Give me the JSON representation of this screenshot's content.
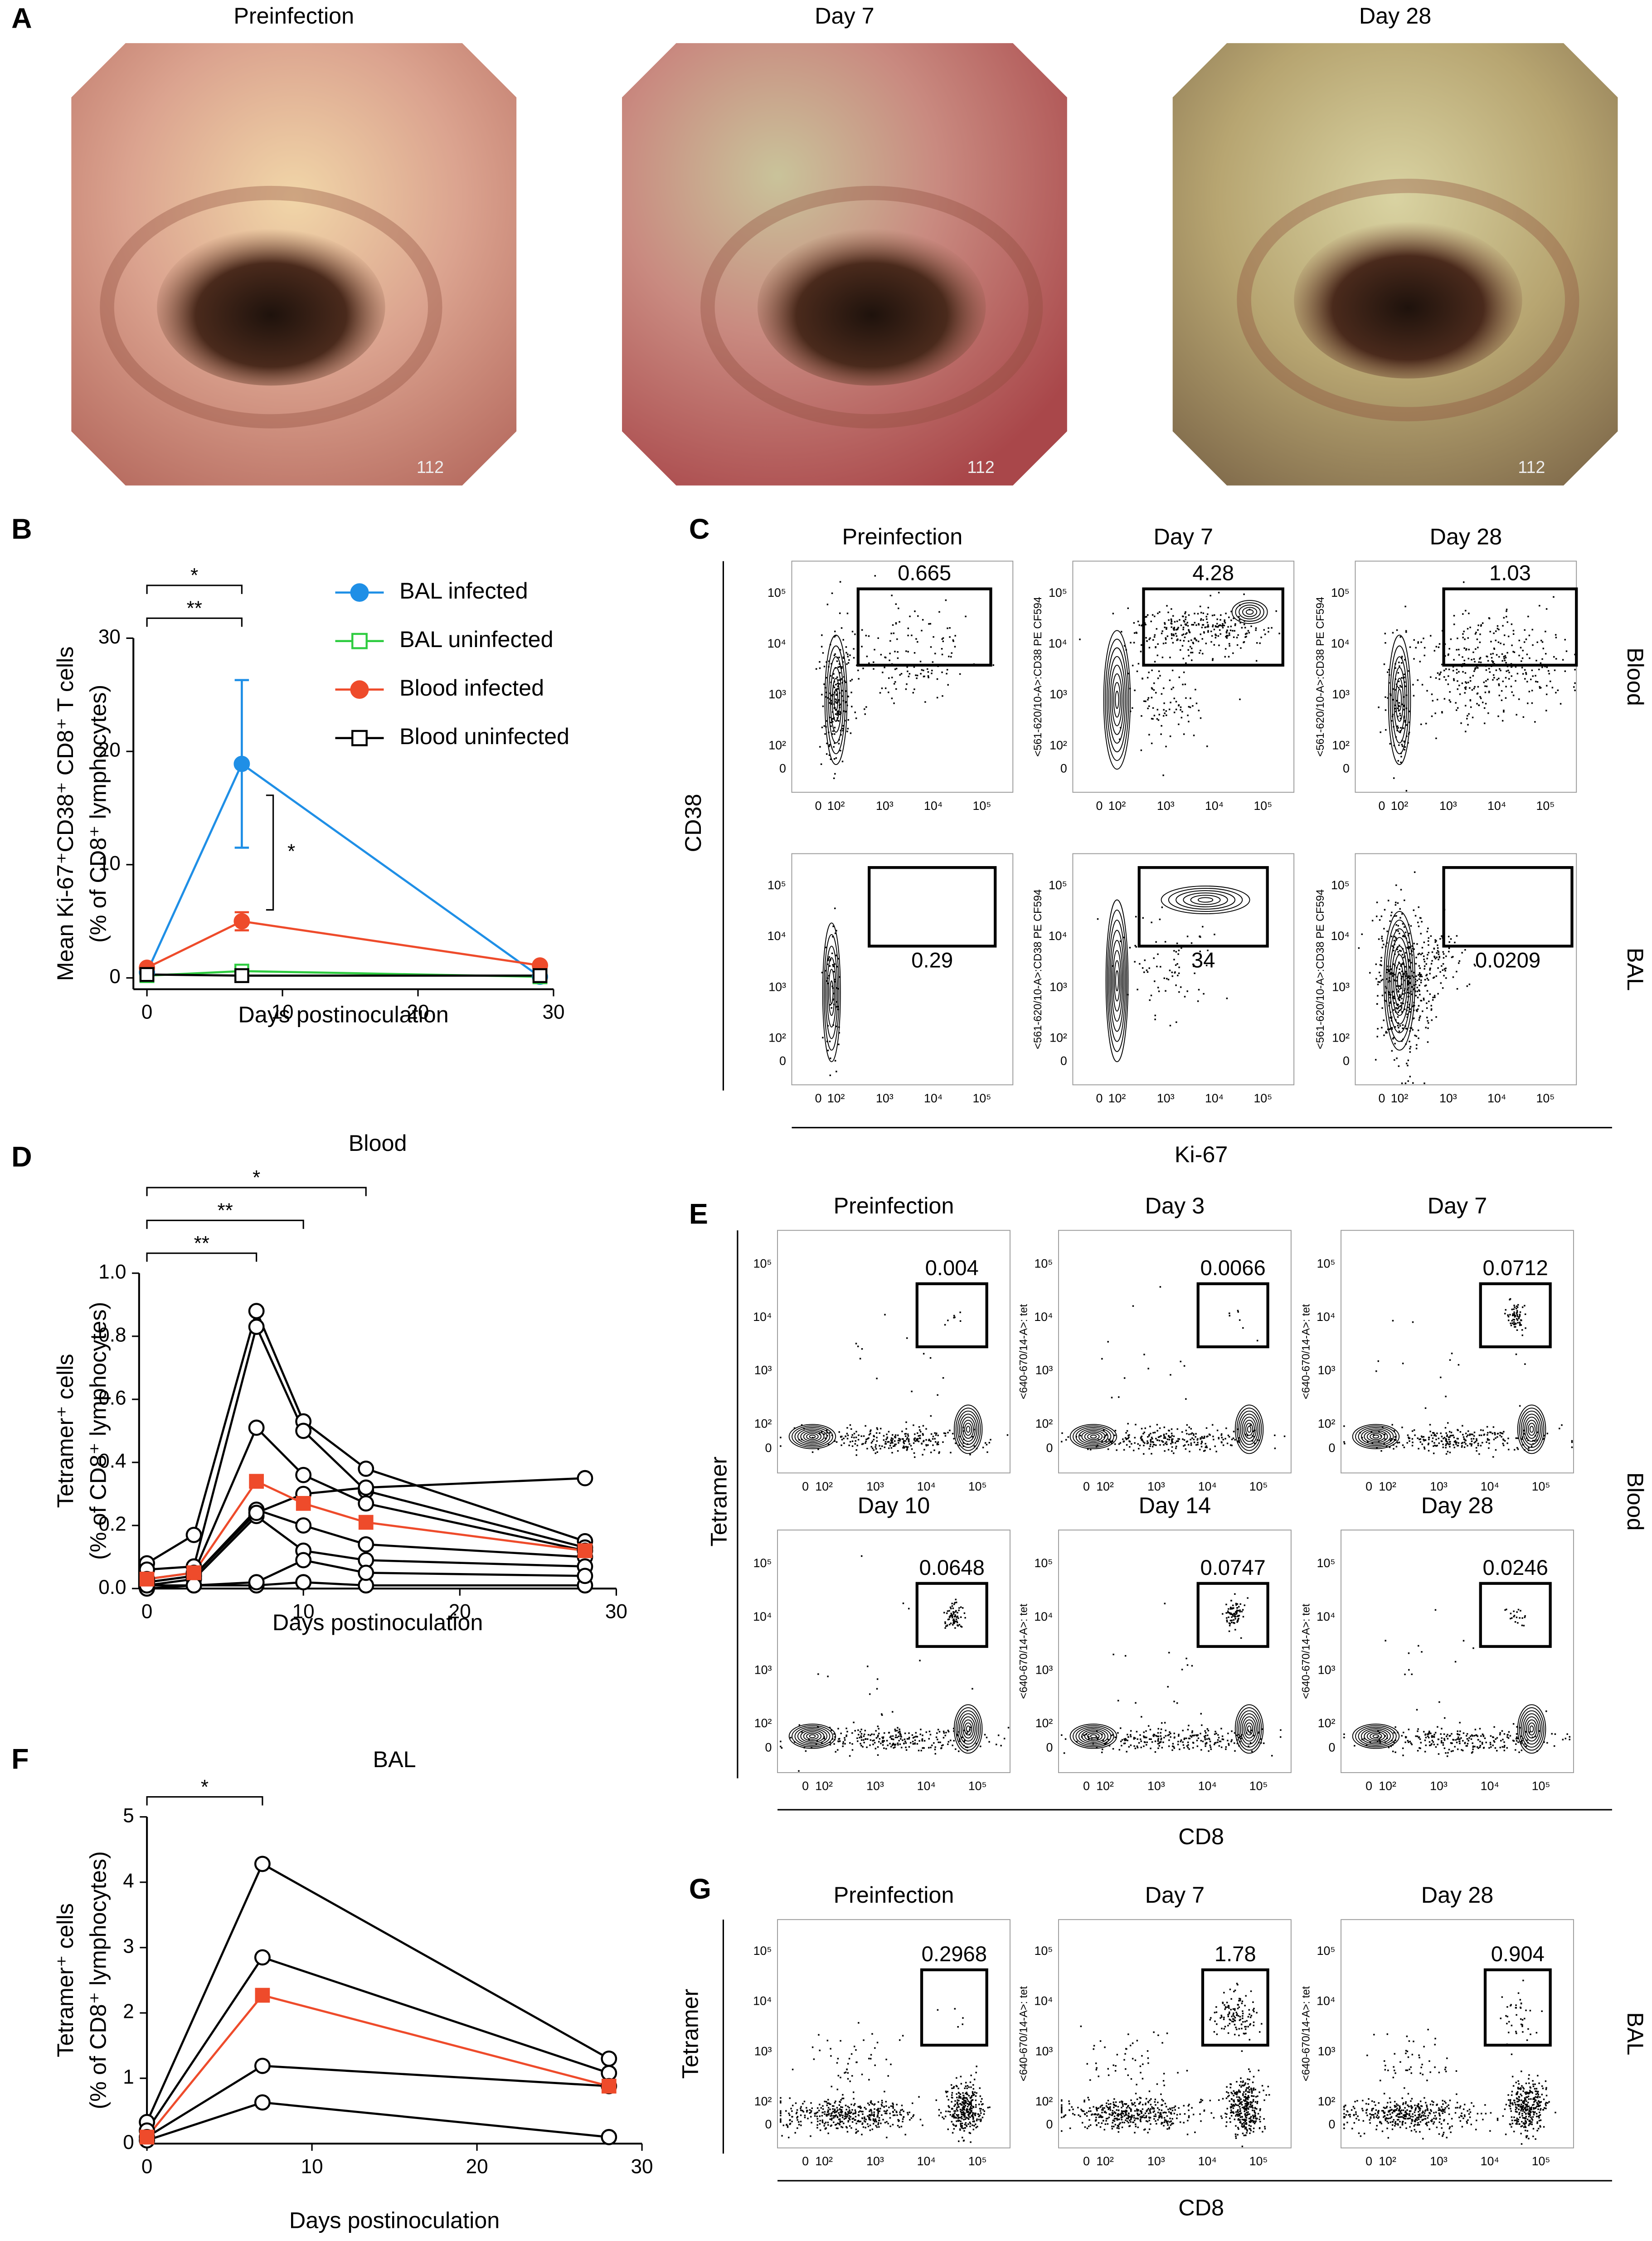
{
  "panel_labels": [
    "A",
    "B",
    "C",
    "D",
    "E",
    "F",
    "G"
  ],
  "photos": {
    "titles": [
      "Preinfection",
      "Day 7",
      "Day 28"
    ],
    "stamp": "112"
  },
  "chart_data": [
    {
      "type": "line",
      "xlabel": "Days postinoculation",
      "ylabel": [
        "Mean Ki-67⁺CD38⁺ CD8⁺ T cells",
        "(% of CD8⁺ lymphocytes)"
      ],
      "x": [
        0,
        7,
        29
      ],
      "xlim": [
        -1,
        30
      ],
      "xticks": [
        0,
        10,
        20,
        30
      ],
      "ylim": [
        -1,
        30
      ],
      "yticks": [
        0,
        10,
        20,
        30
      ],
      "legend": "upper right",
      "series": [
        {
          "name": "BAL infected",
          "color": "#1f8fe6",
          "marker": "circle",
          "filled": true,
          "values": [
            0.5,
            18.9,
            0.1
          ],
          "errors": [
            0.3,
            7.4,
            0.1
          ]
        },
        {
          "name": "BAL uninfected",
          "color": "#2ecc40",
          "marker": "square",
          "filled": false,
          "values": [
            0.2,
            0.6,
            0.1
          ]
        },
        {
          "name": "Blood infected",
          "color": "#ee4b2b",
          "marker": "circle",
          "filled": true,
          "values": [
            0.9,
            5.0,
            1.1
          ],
          "errors": [
            0.2,
            0.8,
            0.2
          ]
        },
        {
          "name": "Blood uninfected",
          "color": "#000000",
          "marker": "square",
          "filled": false,
          "values": [
            0.3,
            0.2,
            0.2
          ]
        }
      ],
      "annotations": [
        {
          "text": "**",
          "color": "#ee4b2b",
          "x": [
            0,
            7
          ]
        },
        {
          "text": "*",
          "color": "#1f8fe6",
          "x": [
            0,
            7
          ]
        }
      ],
      "pair_annotation": {
        "text": "*",
        "color": "#000000"
      }
    },
    {
      "type": "line",
      "title": "Blood",
      "xlabel": "Days postinoculation",
      "ylabel": [
        "Tetramer⁺ cells",
        "(% of CD8⁺ lymphocytes)"
      ],
      "x": [
        0,
        3,
        7,
        10,
        14,
        28
      ],
      "xlim": [
        -0.5,
        30
      ],
      "xticks": [
        0,
        10,
        20,
        30
      ],
      "ylim": [
        0,
        1
      ],
      "yticks": [
        {
          "value": 0,
          "label": "0.0"
        },
        0.2,
        0.4,
        0.6,
        0.8,
        {
          "value": 1,
          "label": "1.0"
        }
      ],
      "series": [
        {
          "color": "#000000",
          "marker": "circle",
          "filled": false,
          "values": [
            0.08,
            0.17,
            0.88,
            0.53,
            0.38,
            0.15
          ]
        },
        {
          "color": "#000000",
          "marker": "circle",
          "filled": false,
          "values": [
            0.06,
            0.07,
            0.83,
            0.5,
            0.31,
            0.13
          ]
        },
        {
          "color": "#000000",
          "marker": "circle",
          "filled": false,
          "values": [
            0.03,
            0.05,
            0.51,
            0.36,
            0.27,
            0.12
          ]
        },
        {
          "color": "#000000",
          "marker": "circle",
          "filled": false,
          "values": [
            0.02,
            0.04,
            0.25,
            0.2,
            0.14,
            0.1
          ]
        },
        {
          "color": "#000000",
          "marker": "circle",
          "filled": false,
          "values": [
            0.01,
            0.03,
            0.23,
            0.12,
            0.09,
            0.07
          ]
        },
        {
          "color": "#000000",
          "marker": "circle",
          "filled": false,
          "values": [
            0.02,
            0.04,
            0.24,
            0.3,
            0.32,
            0.35
          ]
        },
        {
          "color": "#000000",
          "marker": "circle",
          "filled": false,
          "values": [
            0.0,
            0.01,
            0.01,
            0.02,
            0.01,
            0.01
          ]
        },
        {
          "color": "#000000",
          "marker": "circle",
          "filled": false,
          "values": [
            0.01,
            0.01,
            0.02,
            0.09,
            0.05,
            0.04
          ]
        },
        {
          "color": "#ee4b2b",
          "marker": "square",
          "filled": true,
          "values": [
            0.03,
            0.05,
            0.34,
            0.27,
            0.21,
            0.12
          ]
        }
      ],
      "annotations": [
        {
          "text": "**",
          "color": "#000000",
          "x": [
            0,
            7
          ]
        },
        {
          "text": "**",
          "color": "#000000",
          "x": [
            0,
            10
          ]
        },
        {
          "text": "*",
          "color": "#000000",
          "x": [
            0,
            14
          ]
        }
      ]
    },
    {
      "type": "line",
      "title": "BAL",
      "xlabel": "Days postinoculation",
      "ylabel": [
        "Tetramer⁺ cells",
        "(% of CD8⁺ lymphocytes)"
      ],
      "x": [
        0,
        7,
        28
      ],
      "xlim": [
        0,
        30
      ],
      "xticks": [
        0,
        10,
        20,
        30
      ],
      "ylim": [
        0,
        5
      ],
      "yticks": [
        0,
        1,
        2,
        3,
        4,
        5
      ],
      "series": [
        {
          "color": "#000000",
          "marker": "circle",
          "filled": false,
          "values": [
            0.33,
            4.28,
            1.3
          ]
        },
        {
          "color": "#000000",
          "marker": "circle",
          "filled": false,
          "values": [
            0.2,
            2.85,
            1.08
          ]
        },
        {
          "color": "#000000",
          "marker": "circle",
          "filled": false,
          "values": [
            0.1,
            1.19,
            0.88
          ]
        },
        {
          "color": "#000000",
          "marker": "circle",
          "filled": false,
          "values": [
            0.05,
            0.63,
            0.1
          ]
        },
        {
          "color": "#ee4b2b",
          "marker": "square",
          "filled": true,
          "values": [
            0.1,
            2.27,
            0.88
          ]
        }
      ],
      "annotations": [
        {
          "text": "*",
          "color": "#000000",
          "x": [
            0,
            7
          ]
        }
      ]
    }
  ],
  "flow_ticks": [
    "0",
    "10²",
    "10³",
    "10⁴",
    "10⁵"
  ],
  "flow_c": {
    "x_label": "Ki-67",
    "y_label": "CD38",
    "channel": "<561-620/10-A>:CD38 PE CF594",
    "titles": [
      [
        "Preinfection",
        "Day 7",
        "Day 28"
      ]
    ],
    "row_labels": [
      "Blood",
      "BAL"
    ],
    "gates": [
      [
        "0.665",
        "4.28",
        "1.03"
      ],
      [
        "0.29",
        "34",
        "0.0209"
      ]
    ]
  },
  "flow_e": {
    "x_label": "CD8",
    "y_label": "Tetramer",
    "channel": "<640-670/14-A>: tet",
    "titles": [
      [
        "Preinfection",
        "Day 3",
        "Day 7"
      ],
      [
        "Day 10",
        "Day 14",
        "Day 28"
      ]
    ],
    "row_labels": [
      "Blood"
    ],
    "gates": [
      [
        "0.004",
        "0.0066",
        "0.0712"
      ],
      [
        "0.0648",
        "0.0747",
        "0.0246"
      ]
    ]
  },
  "flow_g": {
    "x_label": "CD8",
    "y_label": "Tetramer",
    "channel": "<640-670/14-A>: tet",
    "titles": [
      [
        "Preinfection",
        "Day 7",
        "Day 28"
      ]
    ],
    "row_labels": [
      "BAL"
    ],
    "gates": [
      [
        "0.2968",
        "1.78",
        "0.904"
      ]
    ]
  }
}
